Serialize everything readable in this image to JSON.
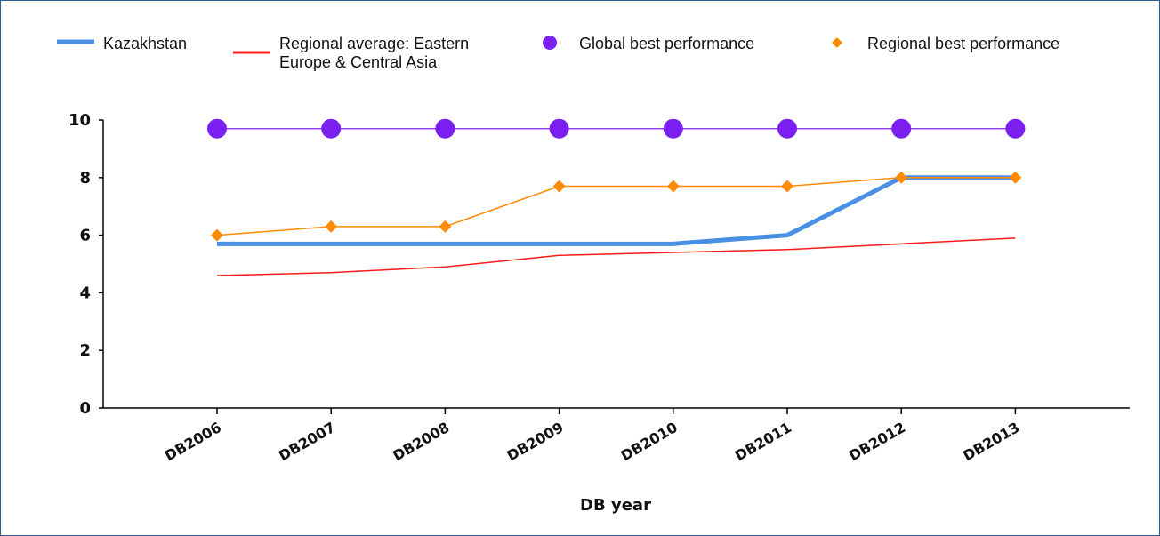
{
  "chart_data": {
    "type": "line",
    "categories": [
      "DB2006",
      "DB2007",
      "DB2008",
      "DB2009",
      "DB2010",
      "DB2011",
      "DB2012",
      "DB2013"
    ],
    "series": [
      {
        "name": "Kazakhstan",
        "values": [
          5.7,
          5.7,
          5.7,
          5.7,
          5.7,
          6.0,
          8.0,
          8.0
        ],
        "color": "#4a90e2",
        "style": "thick-line"
      },
      {
        "name_lines": [
          "Regional average: Eastern",
          "Europe & Central Asia"
        ],
        "values": [
          4.6,
          4.7,
          4.9,
          5.3,
          5.4,
          5.5,
          5.7,
          5.9
        ],
        "color": "#ff1a1a",
        "style": "thin-line"
      },
      {
        "name": "Global best performance",
        "values": [
          9.7,
          9.7,
          9.7,
          9.7,
          9.7,
          9.7,
          9.7,
          9.7
        ],
        "color": "#7a1ff0",
        "style": "circle-markers"
      },
      {
        "name": "Regional best performance",
        "values": [
          6.0,
          6.3,
          6.3,
          7.7,
          7.7,
          7.7,
          8.0,
          8.0
        ],
        "color": "#ff8c00",
        "style": "diamond-markers"
      }
    ],
    "xlabel": "DB year",
    "ylabel": "",
    "ylim": [
      0,
      10
    ],
    "yticks": [
      "0",
      "2",
      "4",
      "6",
      "8",
      "10"
    ],
    "grid": false,
    "legend_position": "top"
  }
}
